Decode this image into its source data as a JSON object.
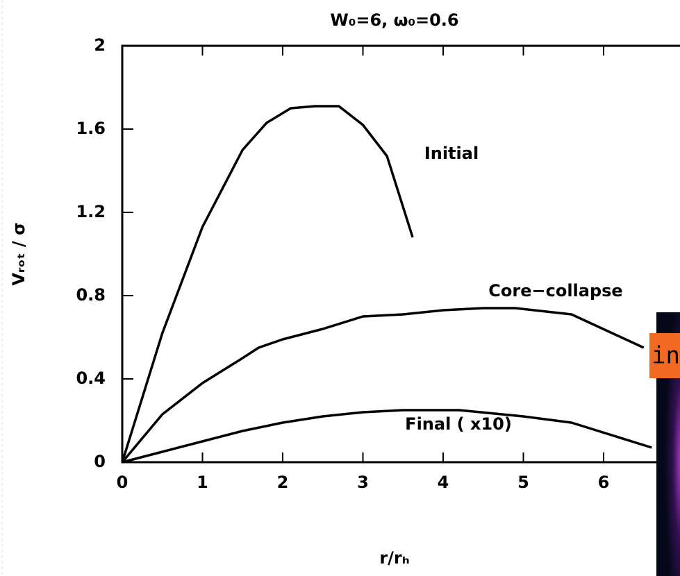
{
  "chart_data": {
    "type": "line",
    "title": "W₀=6, ω₀=0.6",
    "x_label": "r/rₕ",
    "y_label": "Vᵣₒₜ / σ",
    "xlim": [
      0,
      7
    ],
    "ylim": [
      0,
      2
    ],
    "xticks": [
      0,
      1,
      2,
      3,
      4,
      5,
      6
    ],
    "yticks": [
      0,
      0.4,
      0.8,
      1.2,
      1.6,
      2
    ],
    "series": [
      {
        "name": "Initial",
        "color": "#000000",
        "x": [
          0,
          0.5,
          1,
          1.5,
          1.8,
          2.1,
          2.4,
          2.7,
          3.0,
          3.3,
          3.62
        ],
        "values": [
          0,
          0.62,
          1.13,
          1.5,
          1.63,
          1.7,
          1.71,
          1.71,
          1.62,
          1.47,
          1.08
        ]
      },
      {
        "name": "Core−collapse",
        "color": "#000000",
        "x": [
          0,
          0.5,
          1,
          1.5,
          1.7,
          2,
          2.5,
          3,
          3.5,
          4,
          4.5,
          4.9,
          5.6,
          6.5
        ],
        "values": [
          0,
          0.23,
          0.38,
          0.5,
          0.55,
          0.59,
          0.64,
          0.7,
          0.71,
          0.73,
          0.74,
          0.74,
          0.71,
          0.55
        ]
      },
      {
        "name": "Final ( x10)",
        "color": "#000000",
        "x": [
          0,
          0.5,
          1,
          1.5,
          2,
          2.5,
          3,
          3.5,
          4.2,
          5,
          5.6,
          6.6
        ],
        "values": [
          0,
          0.05,
          0.1,
          0.15,
          0.19,
          0.22,
          0.24,
          0.25,
          0.25,
          0.22,
          0.19,
          0.07
        ]
      }
    ],
    "overlay_label": "init"
  }
}
